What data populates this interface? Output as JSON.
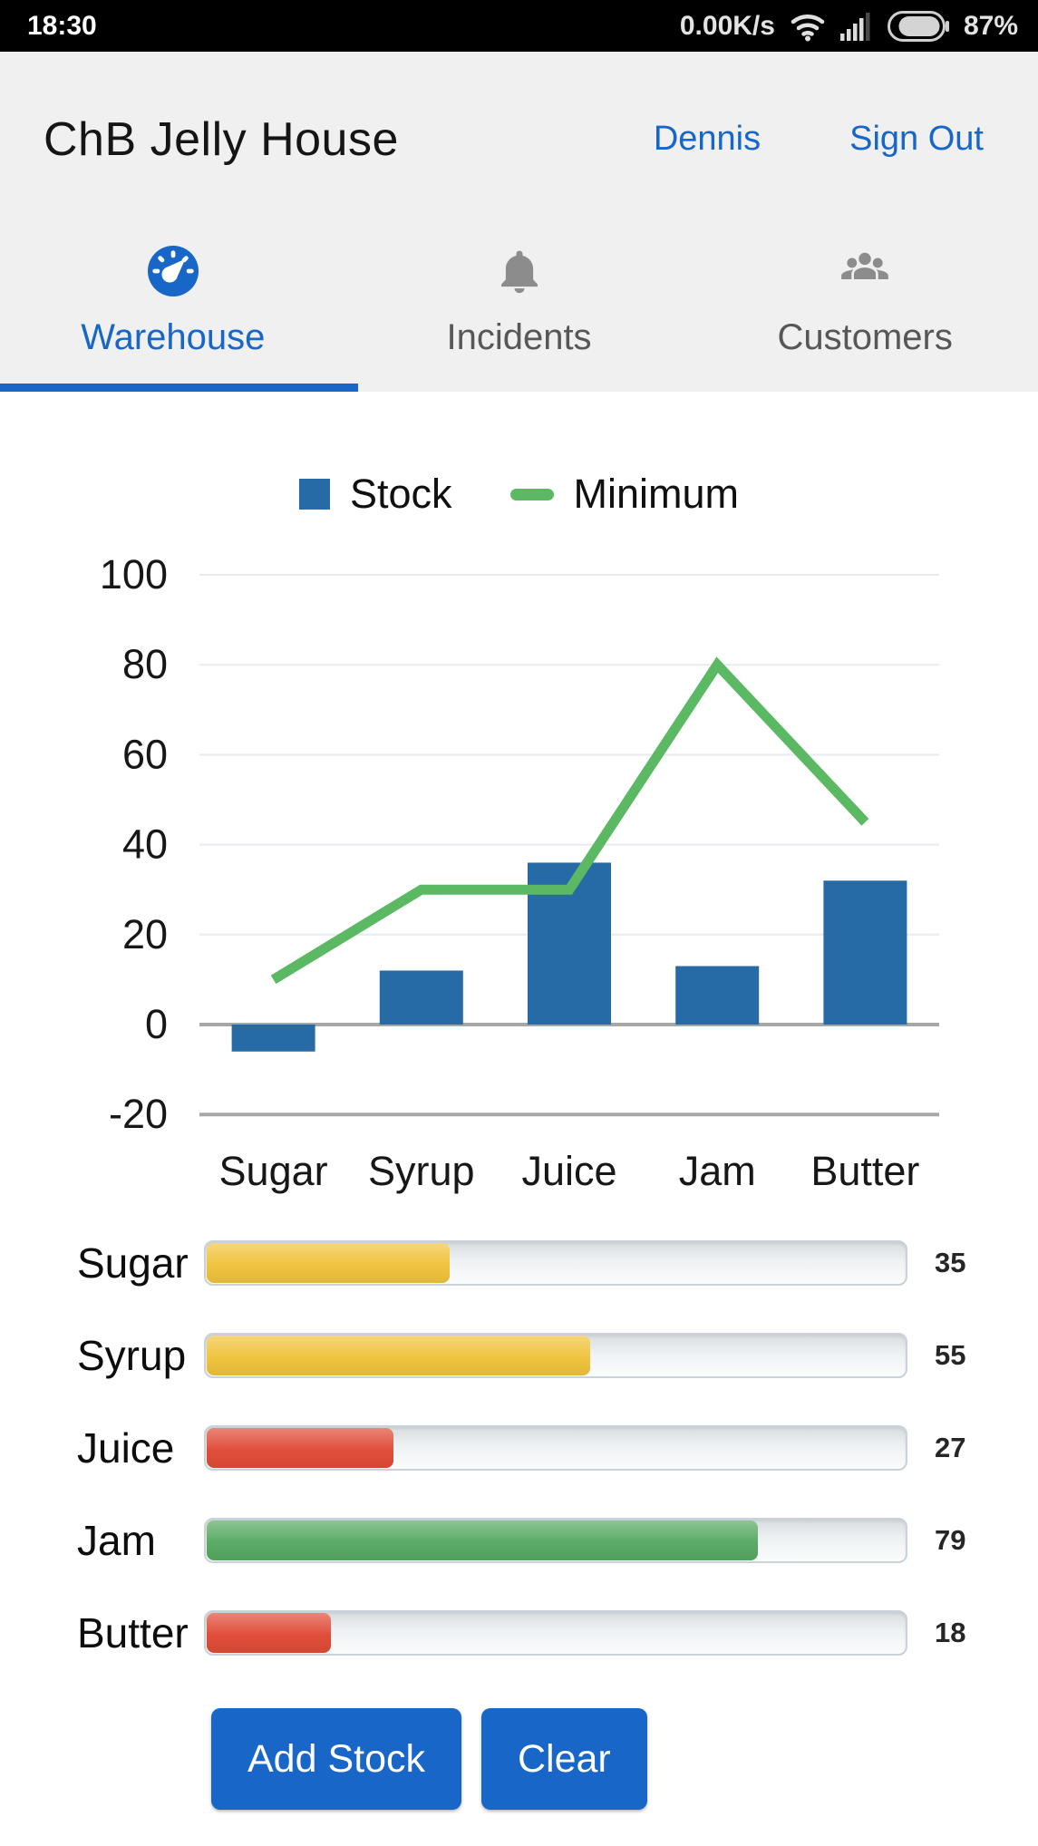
{
  "status_bar": {
    "time": "18:30",
    "net_speed": "0.00K/s",
    "battery_percent": "87%"
  },
  "header": {
    "app_title": "ChB Jelly House",
    "user_link": "Dennis",
    "sign_out_link": "Sign Out"
  },
  "tabs": {
    "warehouse": {
      "label": "Warehouse",
      "active": true
    },
    "incidents": {
      "label": "Incidents",
      "active": false
    },
    "customers": {
      "label": "Customers",
      "active": false
    }
  },
  "chart_data": {
    "type": "bar",
    "categories": [
      "Sugar",
      "Syrup",
      "Juice",
      "Jam",
      "Butter"
    ],
    "series": [
      {
        "name": "Stock",
        "kind": "bar",
        "color": "#266ba6",
        "values": [
          -6,
          12,
          36,
          13,
          32
        ]
      },
      {
        "name": "Minimum",
        "kind": "line",
        "color": "#5cb963",
        "values": [
          10,
          30,
          30,
          80,
          45
        ]
      }
    ],
    "title": "",
    "xlabel": "",
    "ylabel": "",
    "ylim": [
      -20,
      100
    ],
    "yticks": [
      -20,
      0,
      20,
      40,
      60,
      80,
      100
    ],
    "grid": true,
    "legend_position": "top"
  },
  "inventory": {
    "rows": [
      {
        "label": "Sugar",
        "value": 35,
        "color": "#f0c33c"
      },
      {
        "label": "Syrup",
        "value": 55,
        "color": "#f0c33c"
      },
      {
        "label": "Juice",
        "value": 27,
        "color": "#e04b37"
      },
      {
        "label": "Jam",
        "value": 79,
        "color": "#58a963"
      },
      {
        "label": "Butter",
        "value": 18,
        "color": "#e04b37"
      }
    ]
  },
  "buttons": {
    "add_stock": "Add Stock",
    "clear": "Clear"
  },
  "colors": {
    "accent_blue": "#1766c8",
    "bar_blue": "#266ba6",
    "line_green": "#5cb963"
  }
}
